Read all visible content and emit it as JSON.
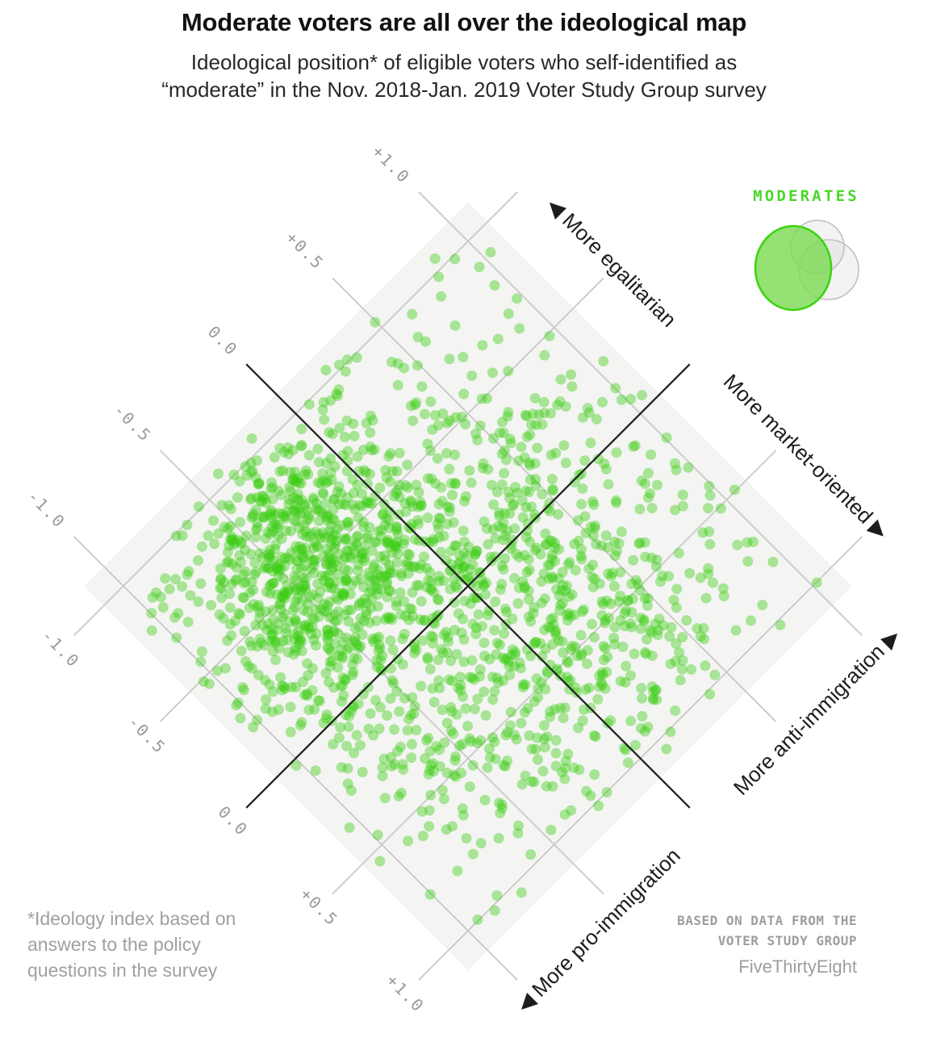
{
  "header": {
    "title": "Moderate voters are all over the ideological map",
    "subtitle_lines": [
      "Ideological position* of eligible voters who self-identified as",
      "“moderate” in the Nov. 2018-Jan. 2019 Voter Study Group survey"
    ]
  },
  "chart_data": {
    "type": "scatter",
    "title": "Moderate voters are all over the ideological map",
    "subtitle": "Ideological position of eligible voters who self-identified as moderate in the Nov. 2018-Jan. 2019 Voter Study Group survey",
    "orientation": "diamond-rotated-45deg",
    "axes": {
      "economic": {
        "negative_direction_label": "More egalitarian",
        "positive_direction_label": "More market-oriented",
        "range": [
          -1,
          1
        ]
      },
      "immigration": {
        "negative_direction_label": "More pro-immigration",
        "positive_direction_label": "More anti-immigration",
        "range": [
          -1,
          1
        ]
      }
    },
    "ticks": [
      {
        "value": -1.0,
        "label": "-1.0"
      },
      {
        "value": -0.5,
        "label": "-0.5"
      },
      {
        "value": 0.0,
        "label": "0.0"
      },
      {
        "value": 0.5,
        "label": "+0.5"
      },
      {
        "value": 1.0,
        "label": "+1.0"
      }
    ],
    "grid_step": 0.5,
    "direction_labels": [
      {
        "text": "More egalitarian",
        "arrow": "left",
        "edge": "top",
        "align": "start"
      },
      {
        "text": "More market-oriented",
        "arrow": "right",
        "edge": "top",
        "align": "end"
      },
      {
        "text": "More pro-immigration",
        "arrow": "left",
        "edge": "right",
        "align": "start"
      },
      {
        "text": "More anti-immigration",
        "arrow": "right",
        "edge": "right",
        "align": "end"
      }
    ],
    "legend": {
      "label": "MODERATES"
    },
    "points_spec": {
      "note": "overplotted survey scatter approximated by seeded gaussian mixture in (economic u, immigration v) coords",
      "seed": 5381,
      "clip": 1.06,
      "dot_radius": 6.5,
      "components": [
        {
          "n": 780,
          "mu": [
            -0.52,
            -0.38
          ],
          "sigma": [
            0.3,
            0.27
          ]
        },
        {
          "n": 430,
          "mu": [
            -0.05,
            0.28
          ],
          "sigma": [
            0.45,
            0.33
          ]
        },
        {
          "n": 280,
          "mu": [
            0.5,
            0.05
          ],
          "sigma": [
            0.33,
            0.4
          ]
        },
        {
          "n": 140,
          "mu": [
            0.18,
            -0.6
          ],
          "sigma": [
            0.38,
            0.26
          ]
        },
        {
          "n": 100,
          "uniform": true
        }
      ]
    },
    "colors": {
      "plot_bg": "#f4f4f3",
      "grid": "#c9c9c9",
      "axis": "#222222",
      "dot": "#3bce14",
      "dot_opacity": 0.42,
      "tick_text": "#9a9a9a",
      "direction_text": "#1d1d1d",
      "legend_label": "#4bd62a",
      "legend_green_fill": "#7edb55",
      "legend_green_stroke": "#3ed313",
      "legend_gray_stroke": "#bfbfbf",
      "legend_gray_fill": "#b4b4b4",
      "title_text": "#121212",
      "subtitle_text": "#282828",
      "footnote_text": "#a0a0a0",
      "credits_text": "#9e9e9e"
    }
  },
  "footnote": {
    "lines": [
      "*Ideology index based on",
      "answers to the policy",
      "questions in the survey"
    ]
  },
  "credits": {
    "source_lines": [
      "BASED ON DATA FROM THE",
      "VOTER STUDY GROUP"
    ],
    "brand": "FiveThirtyEight"
  }
}
